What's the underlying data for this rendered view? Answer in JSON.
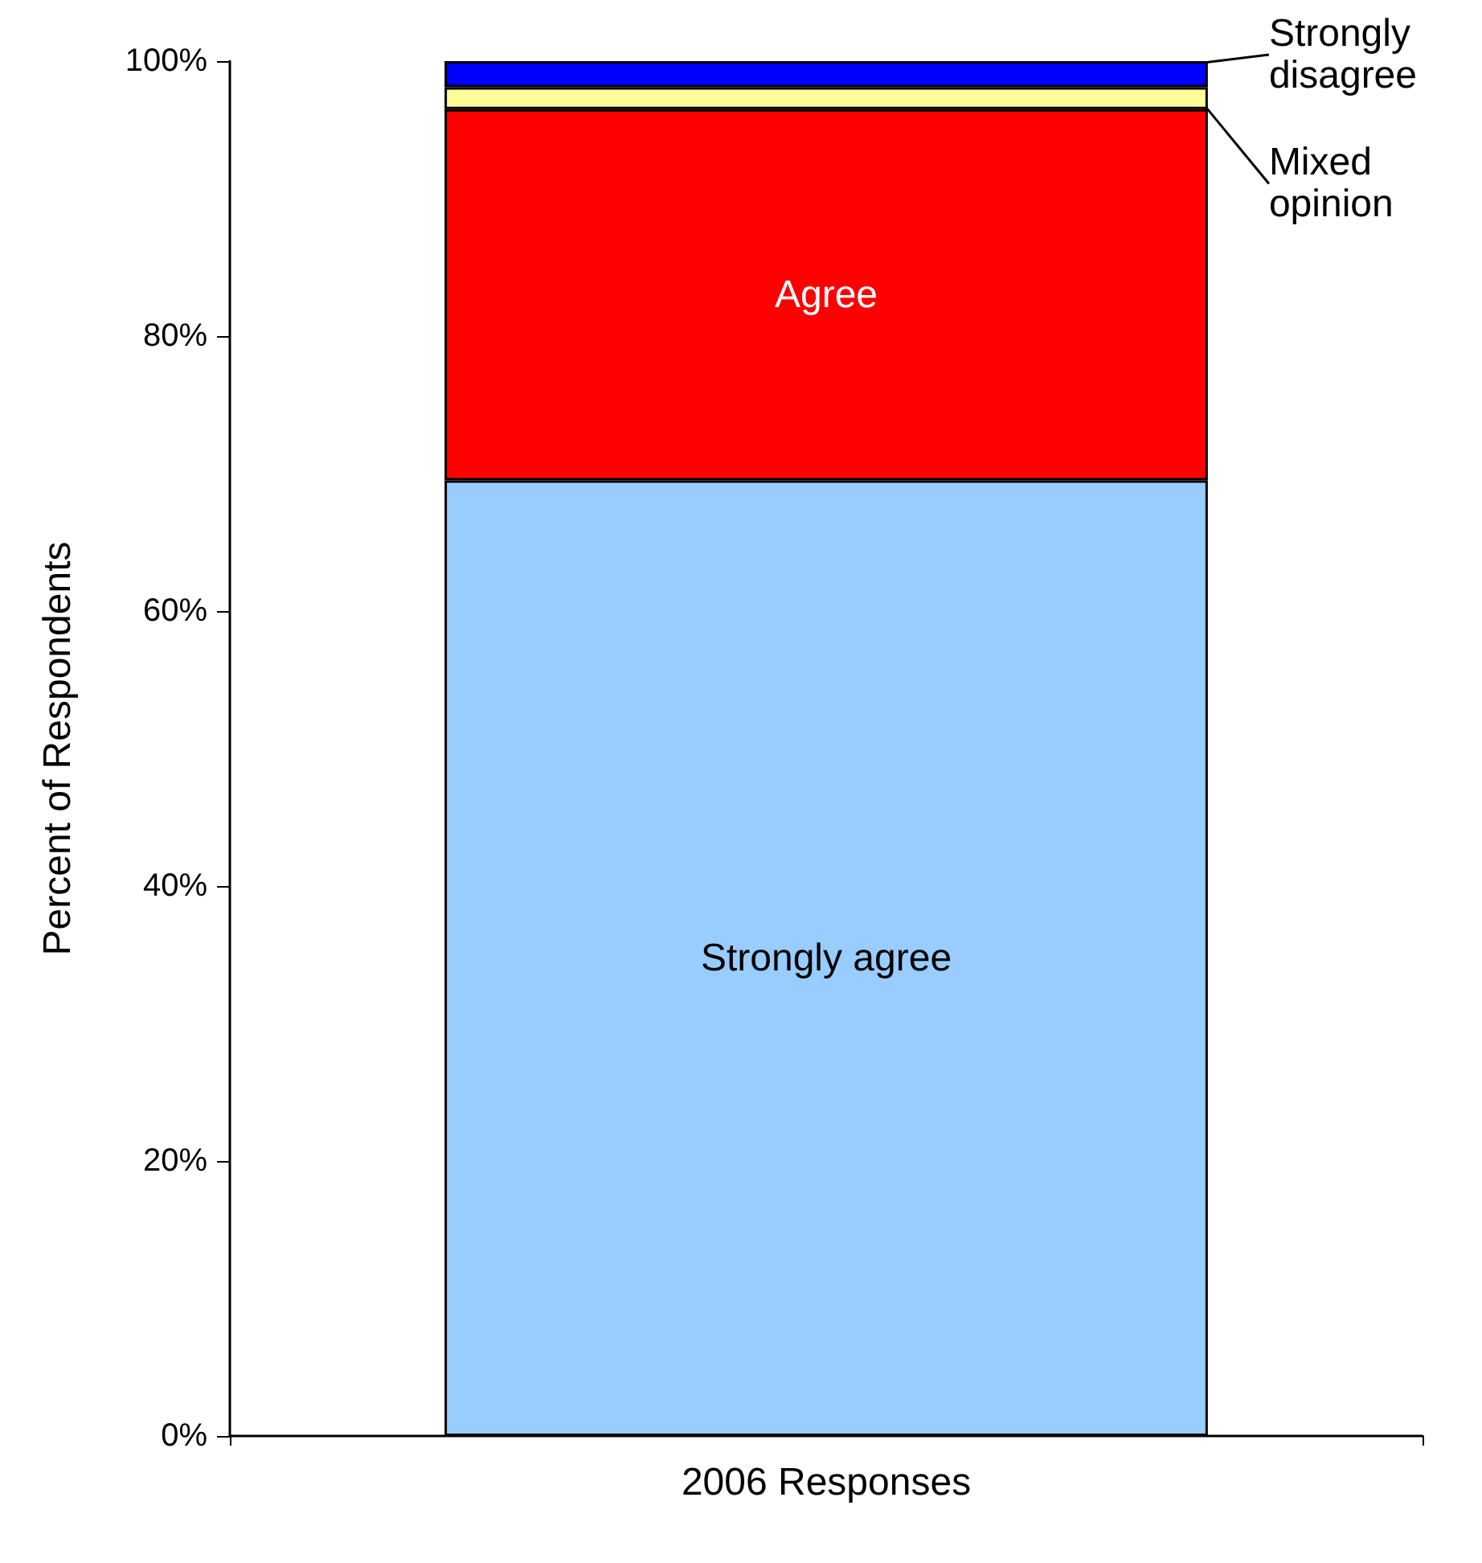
{
  "chart_data": {
    "type": "bar",
    "stacked": true,
    "ylabel": "Percent of Respondents",
    "categories": [
      "2006 Responses"
    ],
    "series": [
      {
        "name": "Strongly agree",
        "color": "#99ccff",
        "values": [
          69.5
        ]
      },
      {
        "name": "Agree",
        "color": "#ff0000",
        "values": [
          27.0
        ]
      },
      {
        "name": "Mixed opinion",
        "color": "#ffff99",
        "values": [
          1.6
        ]
      },
      {
        "name": "Strongly disagree",
        "color": "#0000ff",
        "values": [
          1.9
        ]
      }
    ],
    "ylim": [
      0,
      100
    ],
    "yticks": [
      {
        "value": 0,
        "label": "0%"
      },
      {
        "value": 20,
        "label": "20%"
      },
      {
        "value": 40,
        "label": "40%"
      },
      {
        "value": 60,
        "label": "60%"
      },
      {
        "value": 80,
        "label": "80%"
      },
      {
        "value": 100,
        "label": "100%"
      }
    ],
    "grid": false,
    "legend": "top right"
  }
}
